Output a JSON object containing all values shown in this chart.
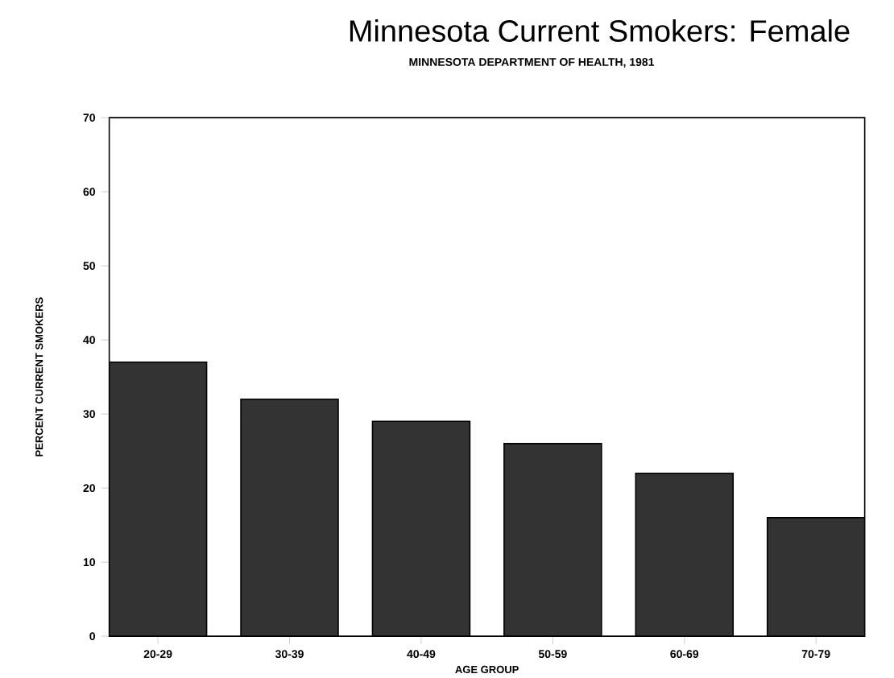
{
  "chart_data": {
    "type": "bar",
    "title": "Minnesota Current Smokers:  Female",
    "subtitle": "MINNESOTA DEPARTMENT OF HEALTH, 1981",
    "xlabel": "AGE GROUP",
    "ylabel": "PERCENT CURRENT SMOKERS",
    "categories": [
      "20-29",
      "30-39",
      "40-49",
      "50-59",
      "60-69",
      "70-79"
    ],
    "values": [
      37,
      32,
      29,
      26,
      22,
      16
    ],
    "color": "#333333",
    "ylim": [
      0,
      70
    ],
    "yticks": [
      0,
      10,
      20,
      30,
      40,
      50,
      60,
      70
    ],
    "grid": false
  }
}
